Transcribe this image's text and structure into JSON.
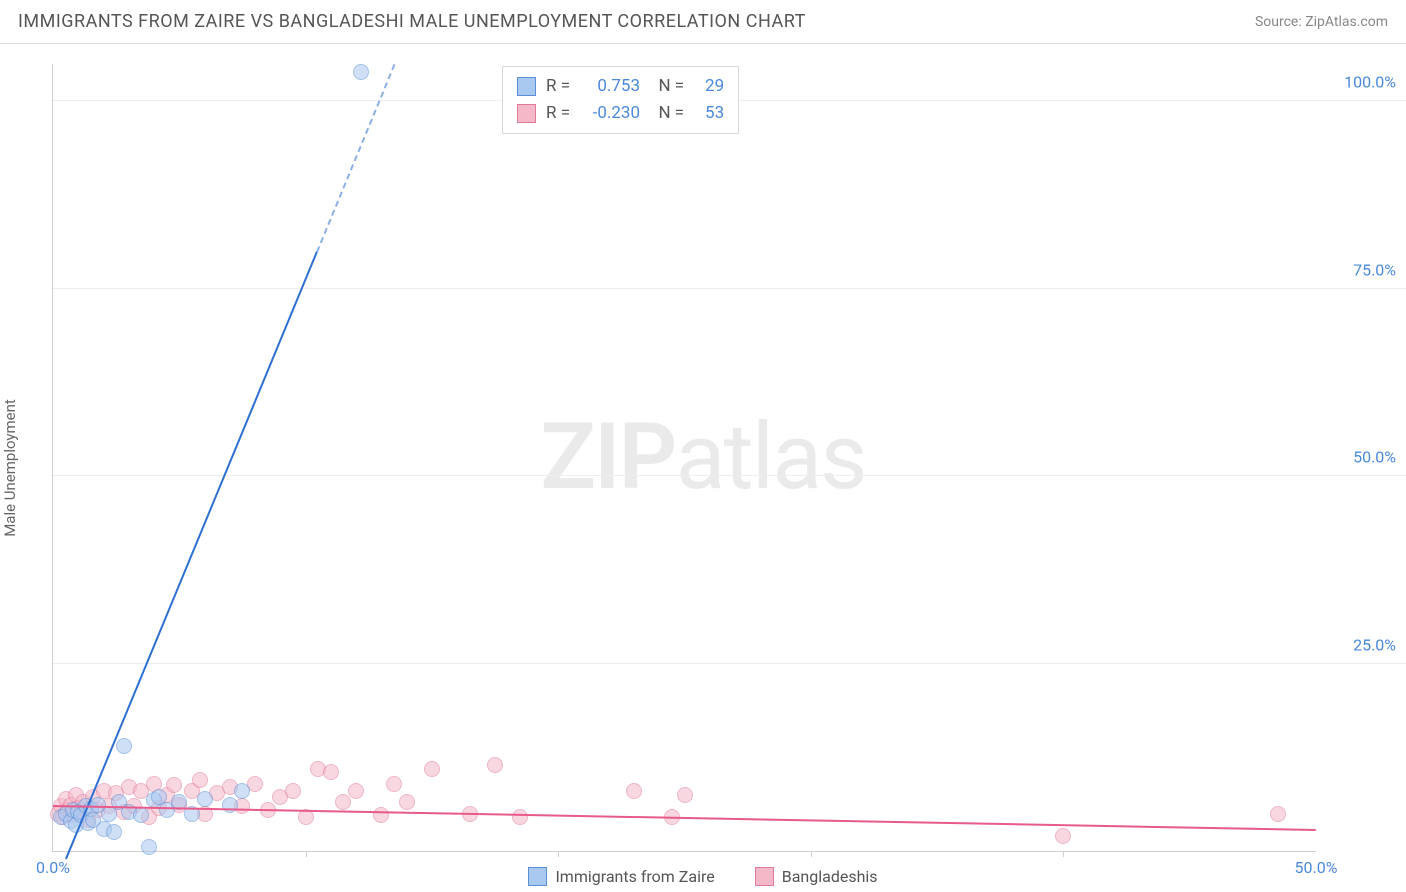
{
  "title": "IMMIGRANTS FROM ZAIRE VS BANGLADESHI MALE UNEMPLOYMENT CORRELATION CHART",
  "source": "Source: ZipAtlas.com",
  "ylabel": "Male Unemployment",
  "watermark_bold": "ZIP",
  "watermark_light": "atlas",
  "chart": {
    "type": "scatter",
    "xlim": [
      0,
      50
    ],
    "ylim": [
      0,
      105
    ],
    "yticks": [
      {
        "v": 25,
        "label": "25.0%"
      },
      {
        "v": 50,
        "label": "50.0%"
      },
      {
        "v": 75,
        "label": "75.0%"
      },
      {
        "v": 100,
        "label": "100.0%"
      }
    ],
    "xticks": [
      {
        "v": 0,
        "label": "0.0%"
      },
      {
        "v": 50,
        "label": "50.0%"
      }
    ],
    "xminor": [
      10,
      20,
      30,
      40
    ],
    "background_color": "#ffffff",
    "grid_color": "#eeeeee",
    "axis_color": "#d0d0d0",
    "tick_color": "#4b89dc",
    "series": [
      {
        "name": "Immigrants from Zaire",
        "fill": "#a8c8f0",
        "stroke": "#5a8fd6",
        "fill_opacity": 0.55,
        "marker_r": 8,
        "R": "0.753",
        "N": "29",
        "trend": {
          "x1": 0.5,
          "y1": -1,
          "x2": 13.5,
          "y2": 105,
          "color": "#2e6fd0",
          "width": 2.2,
          "solid_until_x": 17.5,
          "solid_until_y": 80
        },
        "points": [
          [
            0.3,
            4.5
          ],
          [
            0.5,
            5.0
          ],
          [
            0.7,
            4.0
          ],
          [
            0.8,
            5.5
          ],
          [
            0.9,
            3.5
          ],
          [
            1.0,
            5.2
          ],
          [
            1.1,
            4.8
          ],
          [
            1.3,
            6.0
          ],
          [
            1.4,
            3.8
          ],
          [
            1.5,
            5.6
          ],
          [
            1.6,
            4.2
          ],
          [
            1.8,
            6.2
          ],
          [
            2.0,
            3.0
          ],
          [
            2.2,
            5.0
          ],
          [
            2.4,
            2.5
          ],
          [
            2.6,
            6.5
          ],
          [
            2.8,
            14.0
          ],
          [
            3.0,
            5.2
          ],
          [
            3.5,
            4.8
          ],
          [
            3.8,
            0.5
          ],
          [
            4.0,
            6.8
          ],
          [
            4.2,
            7.2
          ],
          [
            4.5,
            5.5
          ],
          [
            5.0,
            6.5
          ],
          [
            5.5,
            5.0
          ],
          [
            6.0,
            7.0
          ],
          [
            7.0,
            6.2
          ],
          [
            7.5,
            8.0
          ],
          [
            12.2,
            104
          ]
        ]
      },
      {
        "name": "Bangladeshis",
        "fill": "#f5b8c8",
        "stroke": "#e07a9a",
        "fill_opacity": 0.55,
        "marker_r": 8,
        "R": "-0.230",
        "N": "53",
        "trend": {
          "x1": 0,
          "y1": 6.2,
          "x2": 50,
          "y2": 3.0,
          "color": "#e85a8a",
          "width": 2
        },
        "points": [
          [
            0.2,
            5.0
          ],
          [
            0.3,
            6.0
          ],
          [
            0.4,
            4.5
          ],
          [
            0.5,
            7.0
          ],
          [
            0.6,
            5.5
          ],
          [
            0.7,
            6.2
          ],
          [
            0.8,
            4.8
          ],
          [
            0.9,
            7.5
          ],
          [
            1.0,
            5.8
          ],
          [
            1.2,
            6.5
          ],
          [
            1.4,
            4.2
          ],
          [
            1.6,
            7.2
          ],
          [
            1.8,
            5.5
          ],
          [
            2.0,
            8.0
          ],
          [
            2.2,
            6.0
          ],
          [
            2.5,
            7.8
          ],
          [
            2.8,
            5.2
          ],
          [
            3.0,
            8.5
          ],
          [
            3.2,
            6.0
          ],
          [
            3.5,
            8.0
          ],
          [
            3.8,
            4.5
          ],
          [
            4.0,
            9.0
          ],
          [
            4.2,
            5.8
          ],
          [
            4.5,
            7.5
          ],
          [
            4.8,
            8.8
          ],
          [
            5.0,
            6.2
          ],
          [
            5.5,
            8.0
          ],
          [
            5.8,
            9.5
          ],
          [
            6.0,
            5.0
          ],
          [
            6.5,
            7.8
          ],
          [
            7.0,
            8.5
          ],
          [
            7.5,
            6.0
          ],
          [
            8.0,
            9.0
          ],
          [
            8.5,
            5.5
          ],
          [
            9.0,
            7.2
          ],
          [
            9.5,
            8.0
          ],
          [
            10.0,
            4.5
          ],
          [
            10.5,
            11.0
          ],
          [
            11.0,
            10.5
          ],
          [
            11.5,
            6.5
          ],
          [
            12.0,
            8.0
          ],
          [
            13.0,
            4.8
          ],
          [
            13.5,
            9.0
          ],
          [
            14.0,
            6.5
          ],
          [
            15.0,
            11.0
          ],
          [
            16.5,
            5.0
          ],
          [
            17.5,
            11.5
          ],
          [
            18.5,
            4.5
          ],
          [
            23.0,
            8.0
          ],
          [
            24.5,
            4.5
          ],
          [
            25.0,
            7.5
          ],
          [
            40.0,
            2.0
          ],
          [
            48.5,
            5.0
          ]
        ]
      }
    ],
    "legend": [
      {
        "label": "Immigrants from Zaire",
        "fill": "#a8c8f0",
        "stroke": "#5a8fd6"
      },
      {
        "label": "Bangladeshis",
        "fill": "#f5b8c8",
        "stroke": "#e07a9a"
      }
    ]
  }
}
